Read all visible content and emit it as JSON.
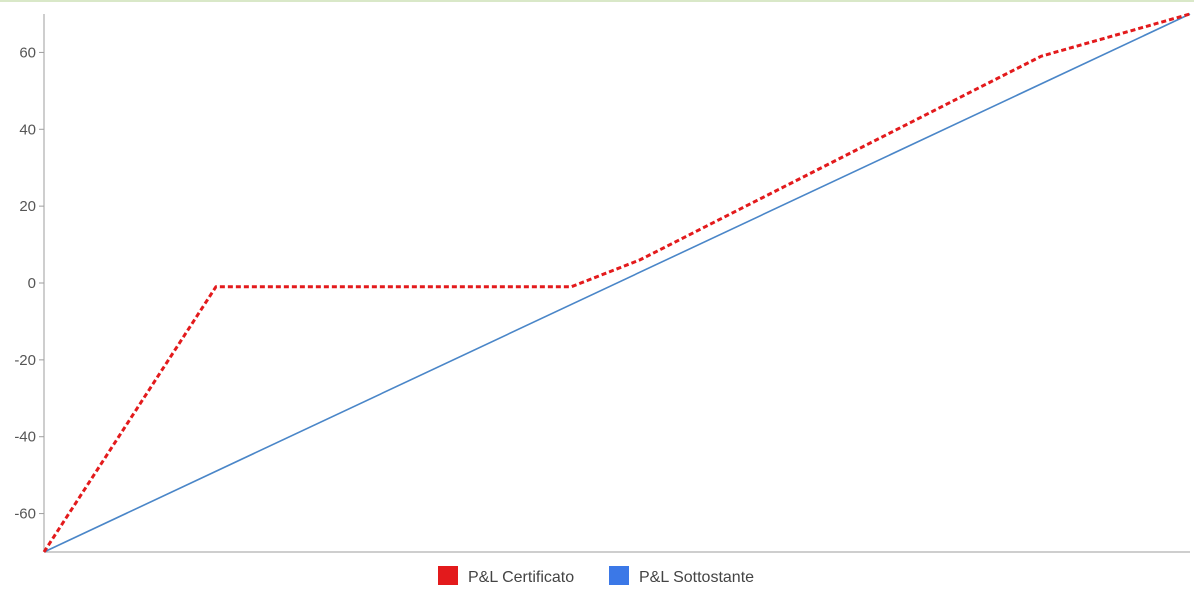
{
  "chart_data": {
    "type": "line",
    "title": "",
    "xlabel": "",
    "ylabel": "",
    "ylim": [
      -70,
      70
    ],
    "xlim": [
      0,
      100
    ],
    "yticks": [
      60,
      40,
      20,
      0,
      -20,
      -40,
      -60
    ],
    "grid": false,
    "legend_position": "bottom",
    "series": [
      {
        "name": "P&L Certificato",
        "color": "#e31a1c",
        "style": "dashed",
        "x": [
          0,
          15,
          46,
          52,
          87,
          100
        ],
        "y": [
          -70,
          -1,
          -1,
          6,
          59,
          70
        ]
      },
      {
        "name": "P&L Sottostante",
        "color": "#4a86c8",
        "style": "solid",
        "x": [
          0,
          100
        ],
        "y": [
          -70,
          70
        ]
      }
    ]
  },
  "legend": {
    "items": [
      {
        "label": "P&L Certificato",
        "color": "#e31a1c"
      },
      {
        "label": "P&L Sottostante",
        "color": "#3b78e7"
      }
    ]
  }
}
